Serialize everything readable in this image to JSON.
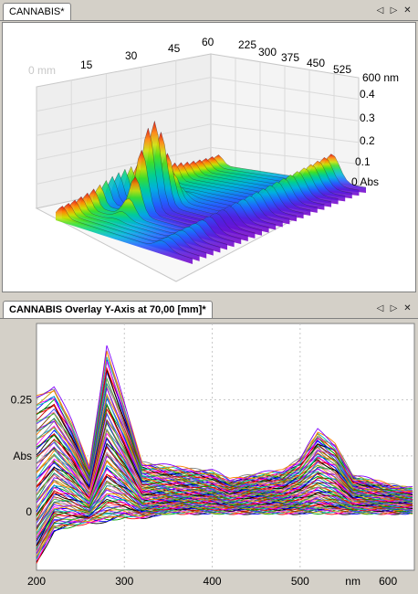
{
  "top_panel": {
    "tab_title": "CANNABIS*",
    "controls": [
      "previous-icon",
      "next-icon",
      "close-icon"
    ],
    "axis_mm_ticks": [
      "0 mm",
      "15",
      "30",
      "45",
      "60"
    ],
    "axis_nm_ticks": [
      "225",
      "300",
      "375",
      "450",
      "525",
      "600 nm"
    ],
    "axis_abs_ticks": [
      "0.4",
      "0.3",
      "0.2",
      "0.1",
      "0 Abs"
    ]
  },
  "bottom_panel": {
    "tab_title": "CANNABIS Overlay Y-Axis at 70,00 [mm]*",
    "controls": [
      "previous-icon",
      "next-icon",
      "close-icon"
    ]
  },
  "chart_data": {
    "type": "line",
    "x_unit": "nm",
    "xlim": [
      200,
      630
    ],
    "ylim": [
      -0.13,
      0.42
    ],
    "x_ticks": [
      "200",
      "300",
      "400",
      "500",
      "nm",
      "600"
    ],
    "y_ticks": [
      "0.25",
      "Abs",
      "0"
    ],
    "series_count": 90,
    "envelope": {
      "x": [
        200,
        220,
        240,
        260,
        280,
        300,
        320,
        350,
        400,
        420,
        440,
        480,
        500,
        520,
        540,
        560,
        600,
        630
      ],
      "max": [
        0.26,
        0.28,
        0.2,
        0.1,
        0.37,
        0.24,
        0.11,
        0.1,
        0.09,
        0.07,
        0.08,
        0.09,
        0.12,
        0.18,
        0.15,
        0.08,
        0.06,
        0.05
      ],
      "min": [
        -0.11,
        -0.04,
        -0.03,
        -0.02,
        -0.02,
        -0.01,
        -0.01,
        0.0,
        0.0,
        0.0,
        0.0,
        0.0,
        0.0,
        0.0,
        0.0,
        0.0,
        0.0,
        0.0
      ]
    }
  }
}
